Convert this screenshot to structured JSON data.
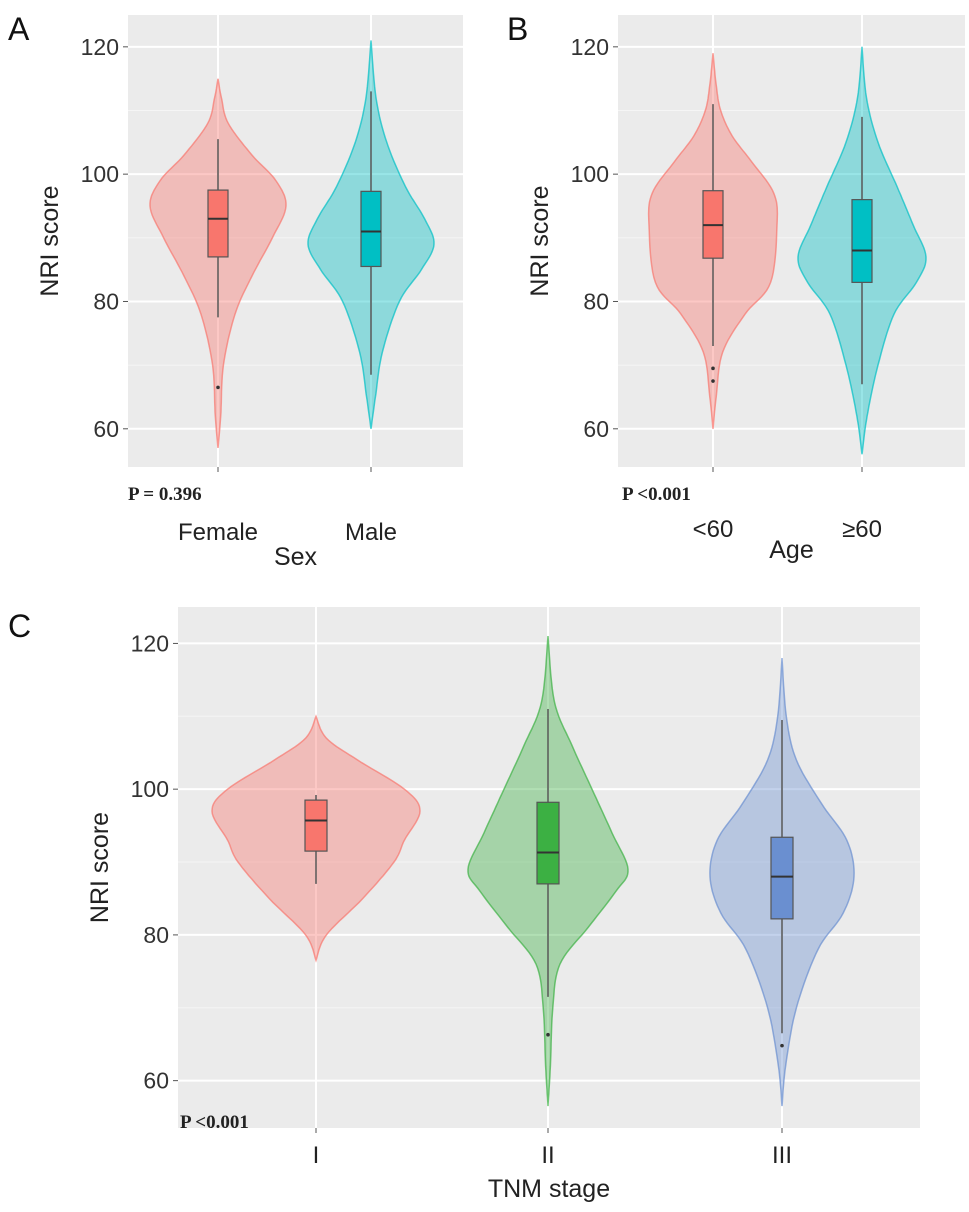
{
  "colors": {
    "panel_bg": "#EBEBEB",
    "grid": "#FFFFFF"
  },
  "chart_data": [
    {
      "panel_label": "A",
      "type": "violin",
      "xlabel": "Sex",
      "ylabel": "NRI score",
      "ylim": [
        54,
        125
      ],
      "yticks": [
        60,
        80,
        100,
        120
      ],
      "grid": true,
      "p_value": "P = 0.396",
      "categories": [
        "Female",
        "Male"
      ],
      "groups": [
        {
          "label": "Female",
          "color": "#F8766D",
          "box": {
            "whisker_low": 77.5,
            "q1": 87,
            "median": 93,
            "q3": 97.5,
            "whisker_high": 105.5
          },
          "outliers": [
            66.5
          ],
          "density": [
            [
              57,
              0
            ],
            [
              62,
              0.04
            ],
            [
              70,
              0.08
            ],
            [
              78,
              0.25
            ],
            [
              84,
              0.5
            ],
            [
              90,
              0.8
            ],
            [
              95,
              1
            ],
            [
              99,
              0.85
            ],
            [
              103,
              0.5
            ],
            [
              108,
              0.15
            ],
            [
              112,
              0.05
            ],
            [
              115,
              0
            ]
          ]
        },
        {
          "label": "Male",
          "color": "#00BFC4",
          "box": {
            "whisker_low": 68.5,
            "q1": 85.5,
            "median": 91,
            "q3": 97.3,
            "whisker_high": 113
          },
          "outliers": [],
          "density": [
            [
              60,
              0
            ],
            [
              65,
              0.07
            ],
            [
              72,
              0.18
            ],
            [
              80,
              0.45
            ],
            [
              85,
              0.8
            ],
            [
              89,
              1
            ],
            [
              93,
              0.85
            ],
            [
              98,
              0.55
            ],
            [
              105,
              0.25
            ],
            [
              112,
              0.08
            ],
            [
              121,
              0
            ]
          ]
        }
      ]
    },
    {
      "panel_label": "B",
      "type": "violin",
      "xlabel": "Age",
      "ylabel": "NRI score",
      "ylim": [
        54,
        125
      ],
      "yticks": [
        60,
        80,
        100,
        120
      ],
      "grid": true,
      "p_value": "P <0.001",
      "categories": [
        "<60",
        "≥60"
      ],
      "groups": [
        {
          "label": "<60",
          "color": "#F8766D",
          "box": {
            "whisker_low": 73,
            "q1": 86.8,
            "median": 92,
            "q3": 97.4,
            "whisker_high": 111
          },
          "outliers": [
            69.5,
            67.5
          ],
          "density": [
            [
              60,
              0
            ],
            [
              65,
              0.05
            ],
            [
              72,
              0.15
            ],
            [
              78,
              0.5
            ],
            [
              83,
              0.9
            ],
            [
              92,
              1
            ],
            [
              97,
              0.95
            ],
            [
              102,
              0.6
            ],
            [
              106,
              0.3
            ],
            [
              110,
              0.12
            ],
            [
              114,
              0.05
            ],
            [
              119,
              0
            ]
          ]
        },
        {
          "label": "≥60",
          "color": "#00BFC4",
          "box": {
            "whisker_low": 67,
            "q1": 83,
            "median": 88,
            "q3": 96,
            "whisker_high": 109
          },
          "outliers": [],
          "density": [
            [
              56,
              0
            ],
            [
              62,
              0.08
            ],
            [
              70,
              0.25
            ],
            [
              78,
              0.5
            ],
            [
              83,
              0.85
            ],
            [
              87,
              1
            ],
            [
              92,
              0.8
            ],
            [
              98,
              0.55
            ],
            [
              105,
              0.25
            ],
            [
              112,
              0.07
            ],
            [
              120,
              0
            ]
          ]
        }
      ]
    },
    {
      "panel_label": "C",
      "type": "violin",
      "xlabel": "TNM stage",
      "ylabel": "NRI score",
      "ylim": [
        53.5,
        125
      ],
      "yticks": [
        60,
        80,
        100,
        120
      ],
      "grid": true,
      "p_value": "P <0.001",
      "categories": [
        "I",
        "II",
        "III"
      ],
      "groups": [
        {
          "label": "I",
          "color": "#F8766D",
          "box": {
            "whisker_low": 87,
            "q1": 91.5,
            "median": 95.7,
            "q3": 98.5,
            "whisker_high": 99.2
          },
          "outliers": [],
          "density": [
            [
              76.5,
              0
            ],
            [
              80,
              0.1
            ],
            [
              85,
              0.45
            ],
            [
              90,
              0.75
            ],
            [
              93,
              0.85
            ],
            [
              97,
              1
            ],
            [
              100,
              0.85
            ],
            [
              104,
              0.4
            ],
            [
              107,
              0.1
            ],
            [
              110,
              0
            ]
          ]
        },
        {
          "label": "II",
          "color": "#3CB043",
          "box": {
            "whisker_low": 71.5,
            "q1": 87,
            "median": 91.3,
            "q3": 98.2,
            "whisker_high": 111
          },
          "outliers": [
            66.3
          ],
          "density": [
            [
              56.5,
              0
            ],
            [
              62,
              0.03
            ],
            [
              70,
              0.06
            ],
            [
              76,
              0.15
            ],
            [
              81,
              0.5
            ],
            [
              86,
              0.85
            ],
            [
              89,
              1
            ],
            [
              94,
              0.8
            ],
            [
              100,
              0.55
            ],
            [
              106,
              0.3
            ],
            [
              112,
              0.08
            ],
            [
              121,
              0
            ]
          ]
        },
        {
          "label": "III",
          "color": "#6A8FD0",
          "box": {
            "whisker_low": 66.5,
            "q1": 82.2,
            "median": 88,
            "q3": 93.4,
            "whisker_high": 109.5
          },
          "outliers": [
            64.8
          ],
          "density": [
            [
              56.5,
              0
            ],
            [
              62,
              0.05
            ],
            [
              70,
              0.2
            ],
            [
              78,
              0.5
            ],
            [
              83,
              0.85
            ],
            [
              88,
              1
            ],
            [
              93,
              0.9
            ],
            [
              98,
              0.55
            ],
            [
              104,
              0.2
            ],
            [
              110,
              0.06
            ],
            [
              118,
              0
            ]
          ]
        }
      ]
    }
  ]
}
